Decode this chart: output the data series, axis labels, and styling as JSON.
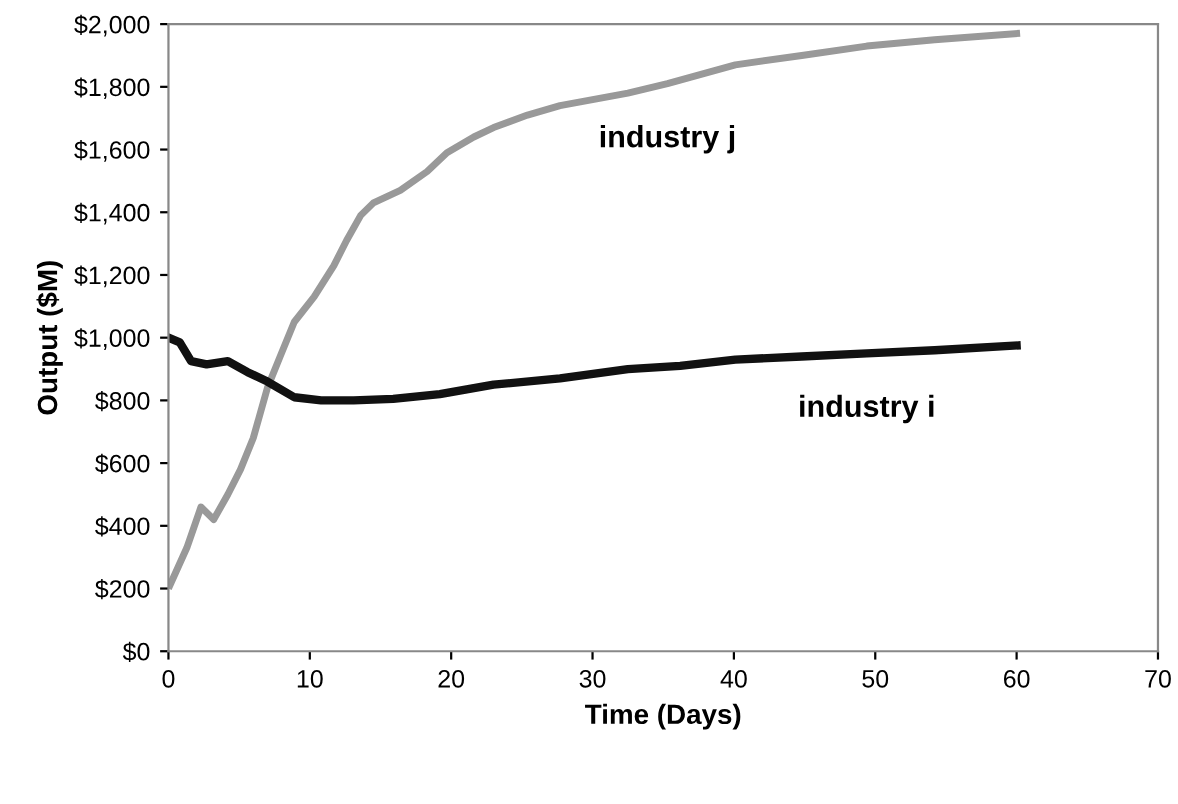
{
  "chart_data": {
    "type": "line",
    "xlabel": "Time (Days)",
    "ylabel": "Output ($M)",
    "xlim": [
      0,
      70
    ],
    "xticks": [
      0,
      10,
      20,
      30,
      40,
      50,
      60,
      70
    ],
    "ylim": [
      0,
      2000
    ],
    "yticks": [
      {
        "value": 0,
        "label": "$0"
      },
      {
        "value": 200,
        "label": "$200"
      },
      {
        "value": 400,
        "label": "$400"
      },
      {
        "value": 600,
        "label": "$600"
      },
      {
        "value": 800,
        "label": "$800"
      },
      {
        "value": 1000,
        "label": "$1,000"
      },
      {
        "value": 1200,
        "label": "$1,200"
      },
      {
        "value": 1400,
        "label": "$1,400"
      },
      {
        "value": 1600,
        "label": "$1,600"
      },
      {
        "value": 1800,
        "label": "$1,800"
      },
      {
        "value": 2000,
        "label": "$2,000"
      }
    ],
    "grid": false,
    "legend": false,
    "line_style": "solid",
    "series": [
      {
        "name": "industry j",
        "color": "#999999",
        "x": [
          0.1,
          1.3,
          2.3,
          3.2,
          4.2,
          5.1,
          6.0,
          7.0,
          7.9,
          8.9,
          10.3,
          11.7,
          12.6,
          13.6,
          14.5,
          16.4,
          18.3,
          19.7,
          21.6,
          23.0,
          25.4,
          27.7,
          30.1,
          32.5,
          35.3,
          40.1,
          44.8,
          49.4,
          54.2,
          60
        ],
        "values": [
          210,
          330,
          460,
          420,
          500,
          580,
          680,
          840,
          940,
          1050,
          1130,
          1230,
          1310,
          1390,
          1430,
          1470,
          1530,
          1590,
          1640,
          1670,
          1710,
          1740,
          1760,
          1780,
          1810,
          1870,
          1900,
          1930,
          1950,
          1970
        ]
      },
      {
        "name": "industry i",
        "color": "#111111",
        "x": [
          0,
          0.8,
          1.6,
          2.7,
          4.2,
          5.6,
          7.0,
          8.9,
          10.8,
          13.1,
          15.9,
          19.2,
          23.0,
          27.7,
          32.5,
          36.2,
          40.1,
          44.8,
          49.4,
          54.2,
          60
        ],
        "values": [
          1000,
          985,
          925,
          915,
          925,
          890,
          860,
          810,
          800,
          800,
          805,
          820,
          850,
          870,
          900,
          910,
          930,
          940,
          950,
          960,
          975
        ]
      }
    ]
  }
}
